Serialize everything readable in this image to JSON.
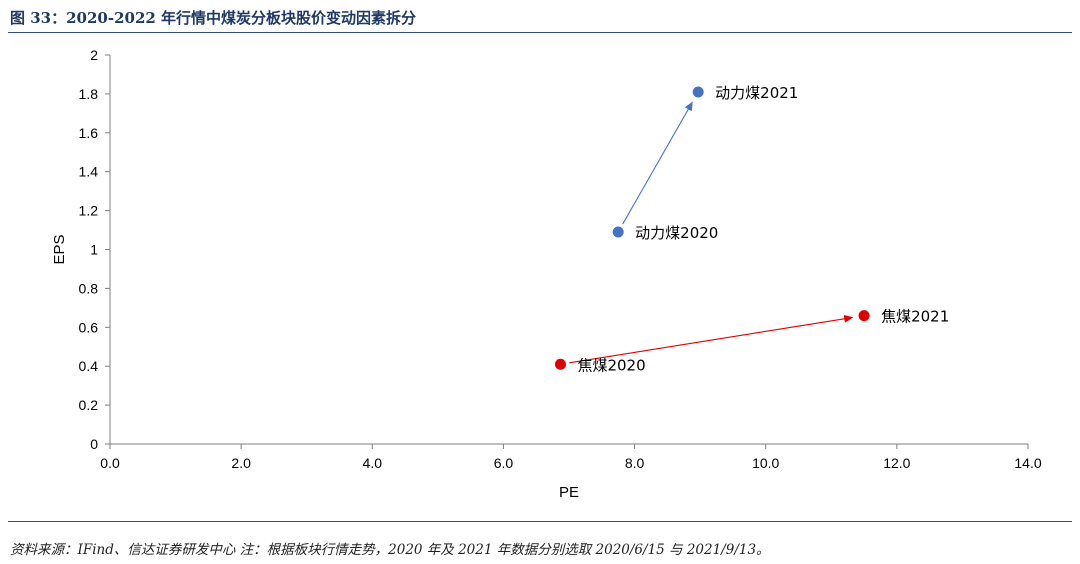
{
  "header": {
    "title": "图 33：2020-2022 年行情中煤炭分板块股价变动因素拆分"
  },
  "footer": {
    "source": "资料来源：IFind、信达证券研发中心  注：根据板块行情走势，2020 年及 2021 年数据分别选取 2020/6/15 与 2021/9/13。"
  },
  "chart_data": {
    "type": "scatter",
    "xlabel": "PE",
    "ylabel": "EPS",
    "xlim": [
      0,
      14
    ],
    "ylim": [
      0,
      2
    ],
    "xticks": [
      "0.0",
      "2.0",
      "4.0",
      "6.0",
      "8.0",
      "10.0",
      "12.0",
      "14.0"
    ],
    "yticks": [
      "0",
      "0.2",
      "0.4",
      "0.6",
      "0.8",
      "1",
      "1.2",
      "1.4",
      "1.6",
      "1.8",
      "2"
    ],
    "grid": false,
    "colors": {
      "thermal_coal": "#4472c4",
      "coking_coal": "#e00000"
    },
    "points": [
      {
        "label": "动力煤2020",
        "x": 7.75,
        "y": 1.09,
        "color": "#4472c4"
      },
      {
        "label": "动力煤2021",
        "x": 8.97,
        "y": 1.81,
        "color": "#4472c4"
      },
      {
        "label": "焦煤2020",
        "x": 6.87,
        "y": 0.41,
        "color": "#e00000"
      },
      {
        "label": "焦煤2021",
        "x": 11.5,
        "y": 0.66,
        "color": "#e00000"
      }
    ],
    "arrows": [
      {
        "from": "动力煤2020",
        "to": "动力煤2021",
        "color": "#4472c4"
      },
      {
        "from": "焦煤2020",
        "to": "焦煤2021",
        "color": "#e00000"
      }
    ]
  }
}
